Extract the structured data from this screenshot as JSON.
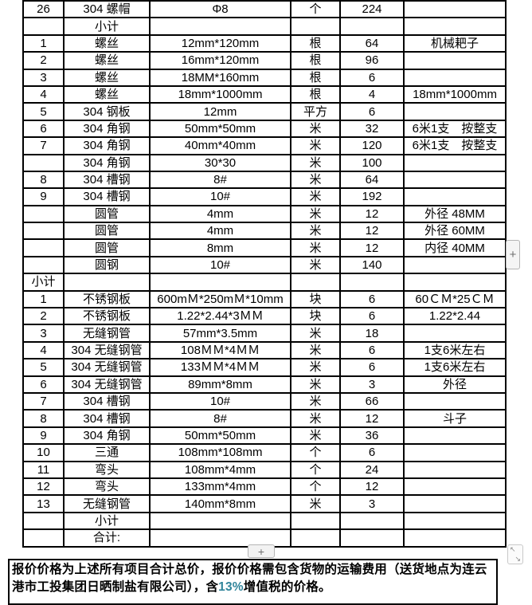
{
  "table": {
    "rows": [
      [
        "26",
        "304 螺帽",
        "Φ8",
        "个",
        "224",
        ""
      ],
      [
        "",
        "小计",
        "",
        "",
        "",
        ""
      ],
      [
        "1",
        "螺丝",
        "12mm*120mm",
        "根",
        "64",
        "机械耙子"
      ],
      [
        "2",
        "螺丝",
        "16mm*120mm",
        "根",
        "96",
        ""
      ],
      [
        "3",
        "螺丝",
        "18MM*160mm",
        "根",
        "6",
        ""
      ],
      [
        "4",
        "螺丝",
        "18mm*1000mm",
        "根",
        "4",
        "18mm*1000mm"
      ],
      [
        "5",
        "304 钢板",
        "12mm",
        "平方",
        "6",
        ""
      ],
      [
        "6",
        "304 角钢",
        "50mm*50mm",
        "米",
        "32",
        "6米1支　按整支"
      ],
      [
        "7",
        "304 角钢",
        "40mm*40mm",
        "米",
        "120",
        "6米1支　按整支"
      ],
      [
        "",
        "304 角钢",
        "30*30",
        "米",
        "100",
        ""
      ],
      [
        "8",
        "304 槽钢",
        "8#",
        "米",
        "64",
        ""
      ],
      [
        "9",
        "304 槽钢",
        "10#",
        "米",
        "192",
        ""
      ],
      [
        "",
        "圆管",
        "4mm",
        "米",
        "12",
        "外径 48MM"
      ],
      [
        "",
        "圆管",
        "4mm",
        "米",
        "12",
        "外径 60MM"
      ],
      [
        "",
        "圆管",
        "8mm",
        "米",
        "12",
        "内径 40MM"
      ],
      [
        "",
        "圆钢",
        "10#",
        "米",
        "140",
        ""
      ],
      [
        "小计",
        "",
        "",
        "",
        "",
        ""
      ],
      [
        "1",
        "不锈钢板",
        "600mＭ*250mＭ*10mm",
        "块",
        "6",
        "60ＣＭ*25ＣＭ"
      ],
      [
        "2",
        "不锈钢板",
        "1.22*2.44*3ＭＭ",
        "块",
        "6",
        "1.22*2.44"
      ],
      [
        "3",
        "无缝钢管",
        "57mm*3.5mm",
        "米",
        "18",
        ""
      ],
      [
        "4",
        "304 无缝钢管",
        "108ＭＭ*4ＭＭ",
        "米",
        "6",
        "1支6米左右"
      ],
      [
        "5",
        "304 无缝钢管",
        "133ＭＭ*4ＭＭ",
        "米",
        "6",
        "1支6米左右"
      ],
      [
        "6",
        "304 无缝钢管",
        "89mm*8mm",
        "米",
        "3",
        "外径"
      ],
      [
        "7",
        "304 槽钢",
        "10#",
        "米",
        "66",
        ""
      ],
      [
        "8",
        "304 槽钢",
        "8#",
        "米",
        "12",
        "斗子"
      ],
      [
        "9",
        "304 角钢",
        "50mm*50mm",
        "米",
        "36",
        ""
      ],
      [
        "10",
        "三通",
        "108mm*108mm",
        "个",
        "6",
        ""
      ],
      [
        "11",
        "弯头",
        "108mm*4mm",
        "个",
        "24",
        ""
      ],
      [
        "12",
        "弯头",
        "133mm*4mm",
        "个",
        "12",
        ""
      ],
      [
        "13",
        "无缝钢管",
        "140mm*8mm",
        "米",
        "3",
        ""
      ],
      [
        "",
        "小计",
        "",
        "",
        "",
        ""
      ],
      [
        "",
        "合计:",
        "",
        "",
        "",
        ""
      ]
    ]
  },
  "controls": {
    "add_row_label": "+",
    "add_column_label": "+",
    "resize_nw": "↖",
    "resize_se": "↘"
  },
  "footer": {
    "prefix": "报价价格为上述所有项目合计总价，报价价格需包含货物的运输费用（送货地点为连云港市工投集团日晒制盐有限公司），含",
    "highlight": "13%",
    "suffix": "增值税的价格。",
    "highlight_color": "#31859b"
  }
}
